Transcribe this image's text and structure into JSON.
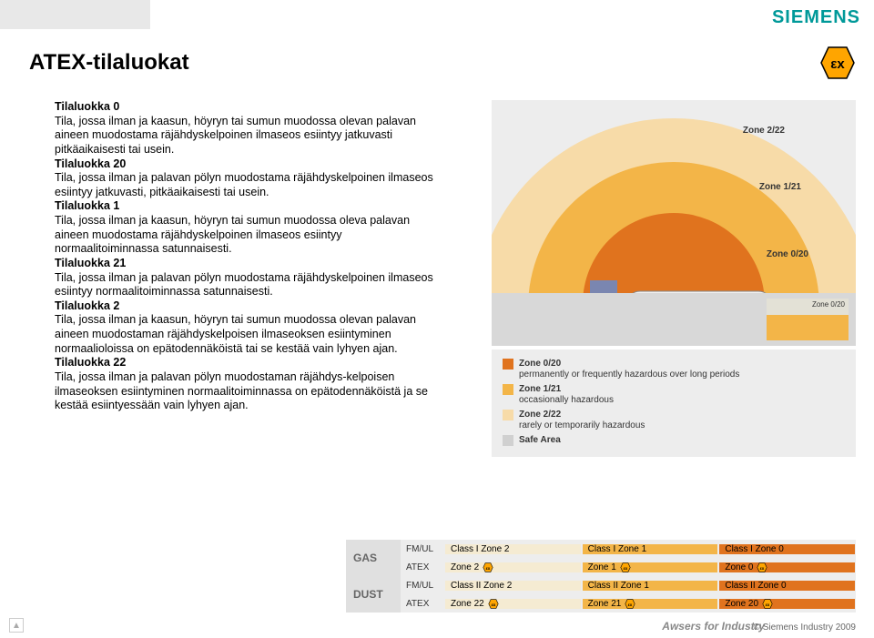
{
  "brand": {
    "name": "SIEMENS",
    "color": "#009999"
  },
  "ex_icon": {
    "fill": "#ffa500",
    "stroke": "#000000",
    "text": "εx"
  },
  "title": "ATEX-tilaluokat",
  "colors": {
    "page_bg": "#ffffff",
    "panel_bg": "#ededed",
    "zone_outer": "#f7dba8",
    "zone_mid": "#f3b548",
    "zone_inner": "#e0731e",
    "safe": "#d0d0d0",
    "text": "#000000",
    "muted": "#666666"
  },
  "sections": [
    {
      "h": "Tilaluokka 0",
      "p": "Tila, jossa ilman ja kaasun, höyryn tai sumun muodossa olevan palavan aineen muodostama räjähdyskelpoinen ilmaseos esiintyy jatkuvasti pitkäaikaisesti tai usein."
    },
    {
      "h": "Tilaluokka 20",
      "p": "Tila, jossa ilman ja palavan pölyn muodostama räjähdyskelpoinen ilmaseos esiintyy jatkuvasti, pitkäaikaisesti tai usein."
    },
    {
      "h": "Tilaluokka 1",
      "p": "Tila, jossa ilman ja kaasun, höyryn tai sumun muodossa oleva palavan aineen muodostama räjähdyskelpoinen ilmaseos esiintyy normaalitoiminnassa satunnaisesti."
    },
    {
      "h": "Tilaluokka 21",
      "p": "Tila, jossa ilman ja palavan pölyn muodostama räjähdyskelpoinen ilmaseos esiintyy normaalitoiminnassa satunnaisesti."
    },
    {
      "h": "Tilaluokka 2",
      "p": "Tila, jossa ilman ja kaasun, höyryn tai sumun muodossa olevan palavan aineen muodostaman räjähdyskelpoisen ilmaseoksen esiintyminen normaalioloissa on epätodennäköistä tai se kestää vain lyhyen ajan."
    },
    {
      "h": "Tilaluokka 22",
      "p": "Tila, jossa ilman ja palavan pölyn muodostaman räjähdys-kelpoisen ilmaseoksen esiintyminen normaalitoiminnassa on epätodennäköistä ja se kestää esiintyessään vain lyhyen ajan."
    }
  ],
  "diagram_labels": {
    "z222": "Zone 2/22",
    "z121": "Zone 1/21",
    "z020": "Zone 0/20",
    "z020_below": "Zone 0/20"
  },
  "legend": [
    {
      "color": "#e0731e",
      "t1": "Zone 0/20",
      "t2": "permanently or frequently hazardous over long periods"
    },
    {
      "color": "#f3b548",
      "t1": "Zone 1/21",
      "t2": "occasionally hazardous"
    },
    {
      "color": "#f7dba8",
      "t1": "Zone 2/22",
      "t2": "rarely or temporarily hazardous"
    },
    {
      "color": "#d0d0d0",
      "t1": "Safe Area",
      "t2": ""
    }
  ],
  "class_table": {
    "rows": [
      {
        "side": "GAS",
        "sub": [
          {
            "hd": "FM/UL",
            "cells": [
              {
                "t": "Class I Zone 2",
                "c": "c2"
              },
              {
                "t": "Class I Zone 1",
                "c": "c1"
              },
              {
                "t": "Class I Zone 0",
                "c": "c0"
              }
            ]
          },
          {
            "hd": "ATEX",
            "cells": [
              {
                "t": "Zone 2",
                "c": "c2",
                "ex": 1
              },
              {
                "t": "Zone 1",
                "c": "c1",
                "ex": 1
              },
              {
                "t": "Zone 0",
                "c": "c0",
                "ex": 1
              }
            ]
          }
        ]
      },
      {
        "side": "DUST",
        "sub": [
          {
            "hd": "FM/UL",
            "cells": [
              {
                "t": "Class II Zone 2",
                "c": "c2"
              },
              {
                "t": "Class II Zone 1",
                "c": "c1"
              },
              {
                "t": "Class II Zone 0",
                "c": "c0"
              }
            ]
          },
          {
            "hd": "ATEX",
            "cells": [
              {
                "t": "Zone 22",
                "c": "c2",
                "ex": 1
              },
              {
                "t": "Zone 21",
                "c": "c1",
                "ex": 1
              },
              {
                "t": "Zone 20",
                "c": "c0",
                "ex": 1
              }
            ]
          }
        ]
      }
    ]
  },
  "footer_tag": "Awsers for Industry",
  "footer": "© Siemens Industry 2009"
}
